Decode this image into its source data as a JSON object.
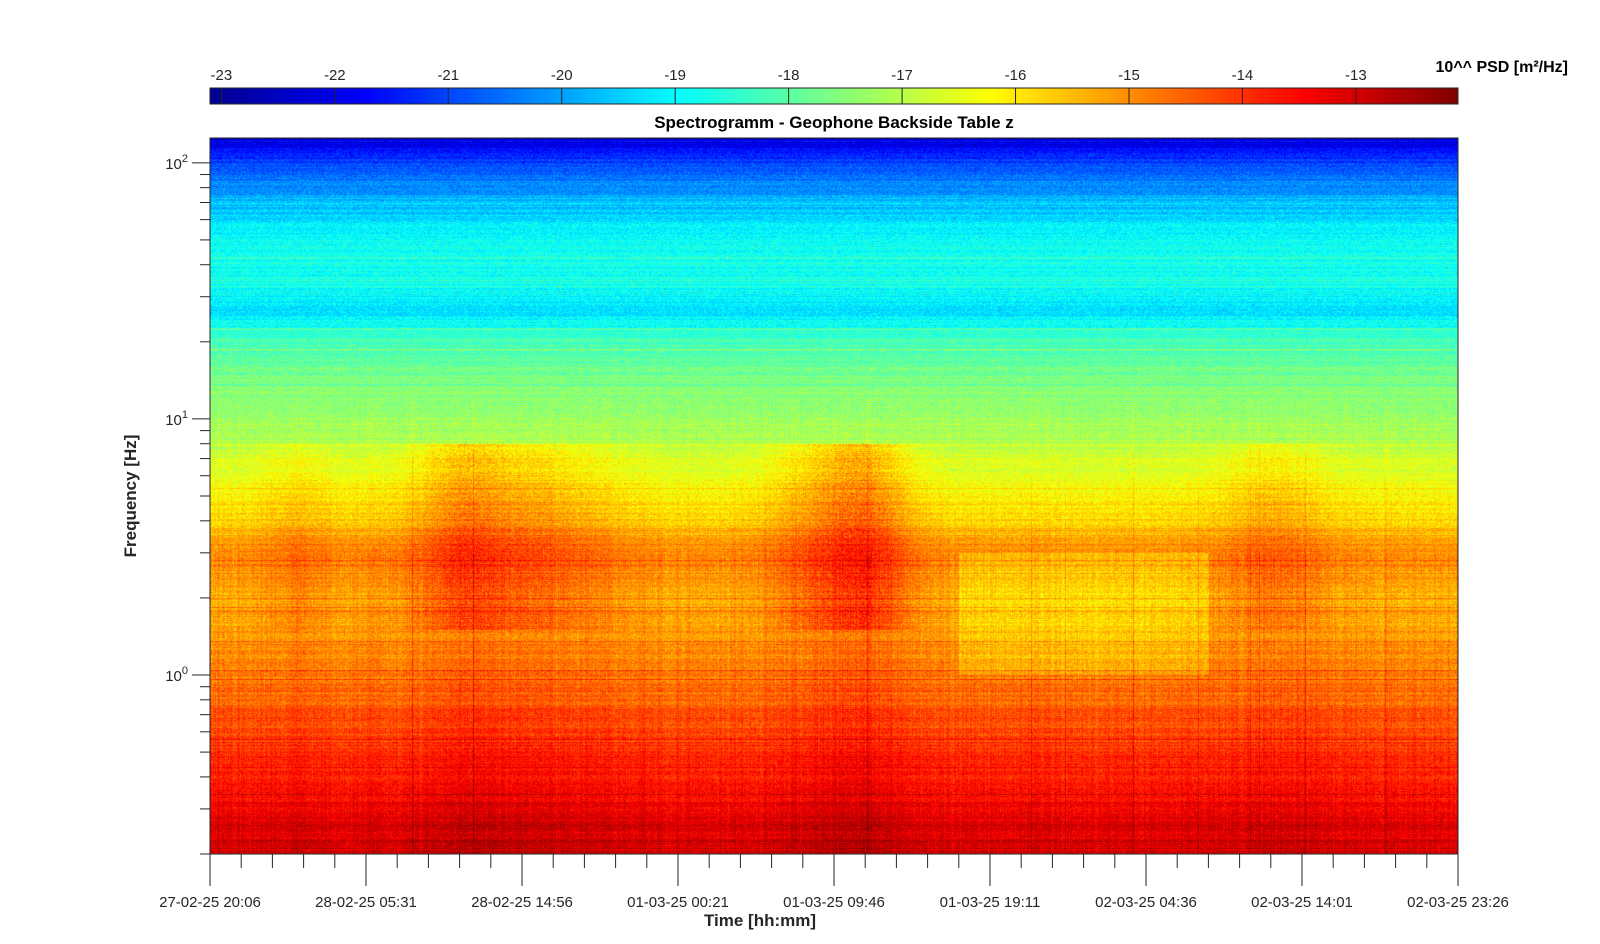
{
  "chart_data": {
    "type": "heatmap",
    "title": "Spectrogramm - Geophone Backside Table z",
    "xlabel": "Time [hh:mm]",
    "ylabel": "Frequency [Hz]",
    "yscale": "log",
    "ylim": [
      0.2,
      125
    ],
    "y_ticks": [
      {
        "value": 1,
        "base": "10",
        "exp": "0"
      },
      {
        "value": 10,
        "base": "10",
        "exp": "1"
      },
      {
        "value": 100,
        "base": "10",
        "exp": "2"
      }
    ],
    "x_tick_labels": [
      "27-02-25 20:06",
      "28-02-25 05:31",
      "28-02-25 14:56",
      "01-03-25 00:21",
      "01-03-25 09:46",
      "01-03-25 19:11",
      "02-03-25 04:36",
      "02-03-25 14:01",
      "02-03-25 23:26"
    ],
    "colorbar": {
      "label": "10^^ PSD [m²/Hz]",
      "ticks": [
        "-23",
        "-22",
        "-21",
        "-20",
        "-19",
        "-18",
        "-17",
        "-16",
        "-15",
        "-14",
        "-13"
      ],
      "colormap": "jet",
      "clim": [
        -23.1,
        -12.1
      ]
    },
    "frequency_profile": [
      {
        "freq": 0.2,
        "log_psd": -13.0
      },
      {
        "freq": 0.3,
        "log_psd": -13.4
      },
      {
        "freq": 0.5,
        "log_psd": -14.0
      },
      {
        "freq": 0.8,
        "log_psd": -14.6
      },
      {
        "freq": 1.0,
        "log_psd": -14.8
      },
      {
        "freq": 1.5,
        "log_psd": -15.2
      },
      {
        "freq": 2.0,
        "log_psd": -15.4
      },
      {
        "freq": 3.0,
        "log_psd": -14.9
      },
      {
        "freq": 4.0,
        "log_psd": -15.8
      },
      {
        "freq": 6.0,
        "log_psd": -16.5
      },
      {
        "freq": 10.0,
        "log_psd": -17.3
      },
      {
        "freq": 15.0,
        "log_psd": -17.8
      },
      {
        "freq": 20.0,
        "log_psd": -18.2
      },
      {
        "freq": 27.0,
        "log_psd": -19.4
      },
      {
        "freq": 35.0,
        "log_psd": -18.7
      },
      {
        "freq": 50.0,
        "log_psd": -18.9
      },
      {
        "freq": 70.0,
        "log_psd": -19.7
      },
      {
        "freq": 100.0,
        "log_psd": -21.0
      },
      {
        "freq": 125.0,
        "log_psd": -22.3
      }
    ]
  }
}
